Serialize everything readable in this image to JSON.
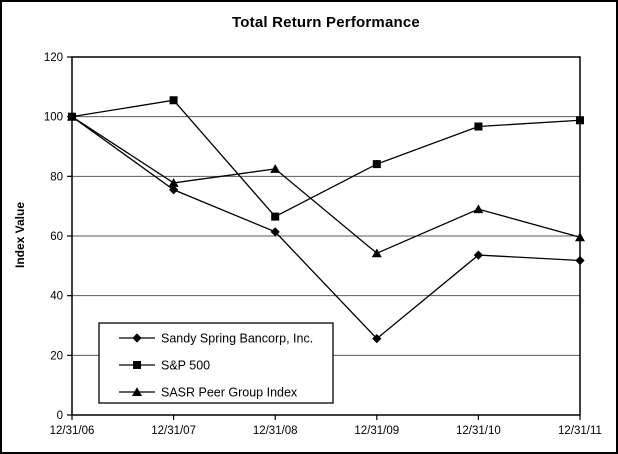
{
  "figure": {
    "title": "Total Return Performance"
  },
  "chart_data": {
    "type": "line",
    "title": "Total Return Performance",
    "xlabel": "",
    "ylabel": "Index Value",
    "categories": [
      "12/31/06",
      "12/31/07",
      "12/31/08",
      "12/31/09",
      "12/31/10",
      "12/31/11"
    ],
    "yticks": [
      0,
      20,
      40,
      60,
      80,
      100,
      120
    ],
    "ylim": [
      0,
      120
    ],
    "grid": true,
    "legend_position": "inside-bottom-left",
    "series": [
      {
        "name": "Sandy Spring Bancorp, Inc.",
        "marker": "diamond",
        "values": [
          100,
          75.5,
          61.4,
          25.6,
          53.6,
          51.8
        ]
      },
      {
        "name": "S&P 500",
        "marker": "square",
        "values": [
          100,
          105.5,
          66.5,
          84.1,
          96.7,
          98.8
        ]
      },
      {
        "name": "SASR Peer Group Index",
        "marker": "triangle",
        "values": [
          100,
          77.8,
          82.5,
          54.2,
          69.0,
          59.6
        ]
      }
    ],
    "colors": {
      "series_line": "#000000",
      "marker_fill": "#000000",
      "gridline": "#595959",
      "plot_border": "#000000",
      "background": "#ffffff",
      "text": "#000000"
    }
  }
}
